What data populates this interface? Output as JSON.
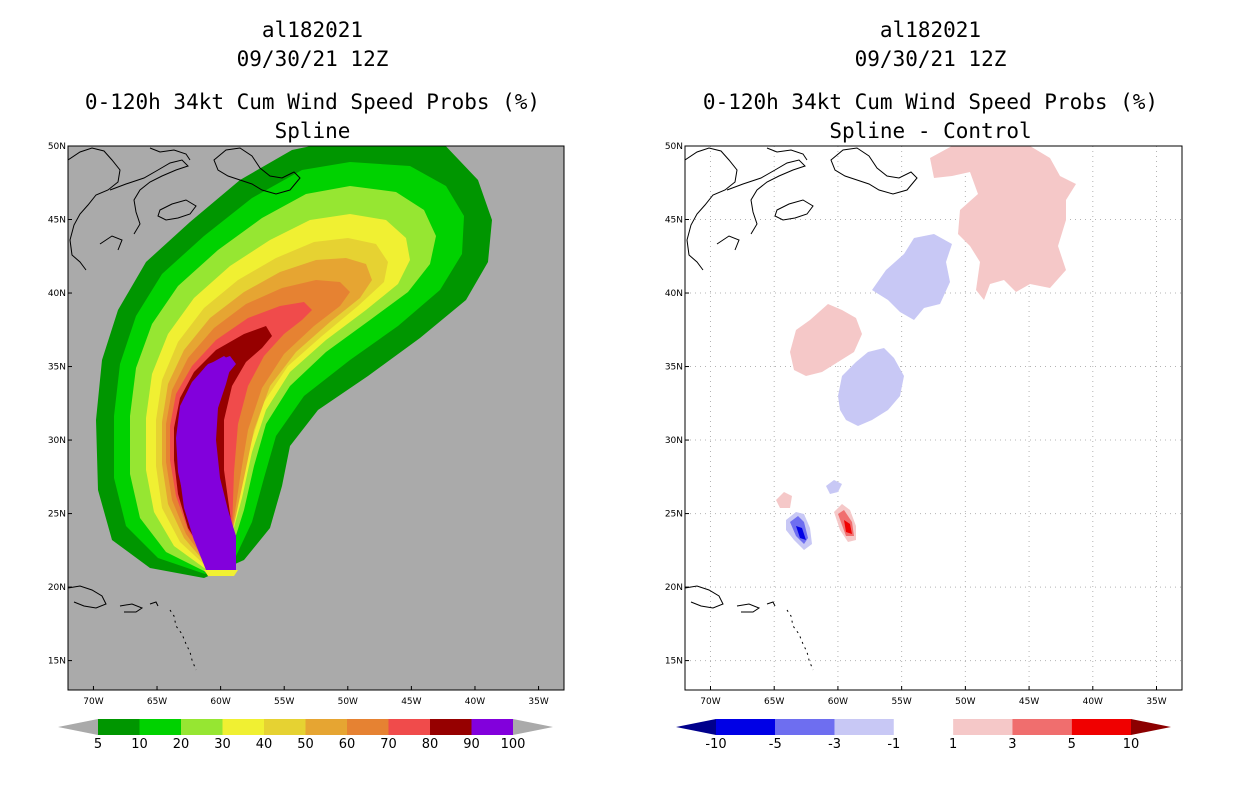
{
  "left_panel": {
    "storm_id": "al182021",
    "datetime": "09/30/21 12Z",
    "product": "0-120h 34kt Cum Wind Speed Probs (%)",
    "subtitle": "Spline",
    "colorbar": {
      "labels": [
        "5",
        "10",
        "20",
        "30",
        "40",
        "50",
        "60",
        "70",
        "80",
        "90",
        "100"
      ],
      "colors": [
        "#009600",
        "#00d200",
        "#96e632",
        "#f0f032",
        "#e6d232",
        "#e6a532",
        "#e68232",
        "#f04b4b",
        "#960000",
        "#8200dc"
      ],
      "over_under_color": "#aaaaaa"
    }
  },
  "right_panel": {
    "storm_id": "al182021",
    "datetime": "09/30/21 12Z",
    "product": "0-120h 34kt Cum Wind Speed Probs (%)",
    "subtitle": "Spline - Control",
    "colorbar": {
      "labels": [
        "-10",
        "-5",
        "-3",
        "-1",
        "1",
        "3",
        "5",
        "10"
      ],
      "colors": [
        "#00008c",
        "#0000e6",
        "#6e6ef0",
        "#c8c8f5",
        "#ffffff",
        "#f5c8c8",
        "#f06e6e",
        "#f00000",
        "#8c0000"
      ]
    }
  },
  "axes": {
    "lon_labels": [
      "70W",
      "65W",
      "60W",
      "55W",
      "50W",
      "45W",
      "40W",
      "35W"
    ],
    "lat_labels": [
      "15N",
      "20N",
      "25N",
      "30N",
      "35N",
      "40N",
      "45N",
      "50N"
    ],
    "lon_range": [
      -72,
      -33
    ],
    "lat_range": [
      13,
      50
    ]
  }
}
